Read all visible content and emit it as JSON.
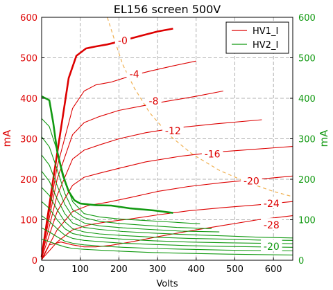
{
  "chart_data": {
    "type": "line",
    "title": "EL156 screen 500V",
    "xlabel": "Volts",
    "ylabel_left": "mA",
    "ylabel_right": "mA",
    "xlim": [
      0,
      650
    ],
    "ylim": [
      0,
      600
    ],
    "x_ticks": [
      "0",
      "100",
      "200",
      "300",
      "400",
      "500",
      "600"
    ],
    "y_ticks": [
      "0",
      "100",
      "200",
      "300",
      "400",
      "500",
      "600"
    ],
    "grid": true,
    "legend_position": "top-right",
    "colors": {
      "hv1": "#dd0000",
      "hv2": "#119911",
      "pmax": "#f0b050",
      "grid": "#999999"
    },
    "legend": [
      {
        "label": "HV1_I",
        "color": "#dd0000"
      },
      {
        "label": "HV2_I",
        "color": "#119911"
      }
    ],
    "series": [
      {
        "name": "HV1_I",
        "grid_bias": "-0",
        "bold": true,
        "x": [
          0,
          30,
          70,
          90,
          115,
          140,
          170,
          200,
          260,
          300,
          340
        ],
        "y": [
          8,
          200,
          450,
          505,
          523,
          528,
          533,
          540,
          555,
          565,
          572
        ]
      },
      {
        "name": "HV1_I",
        "grid_bias": "-4",
        "x": [
          0,
          40,
          80,
          110,
          140,
          180,
          230,
          280,
          340,
          400
        ],
        "y": [
          10,
          230,
          375,
          418,
          433,
          440,
          455,
          467,
          480,
          492
        ]
      },
      {
        "name": "HV1_I",
        "grid_bias": "-8",
        "x": [
          0,
          40,
          80,
          110,
          150,
          200,
          260,
          320,
          400,
          470
        ],
        "y": [
          10,
          200,
          310,
          340,
          355,
          370,
          381,
          392,
          405,
          418
        ]
      },
      {
        "name": "HV1_I",
        "grid_bias": "-12",
        "x": [
          0,
          40,
          80,
          110,
          150,
          200,
          270,
          350,
          450,
          570
        ],
        "y": [
          8,
          160,
          250,
          272,
          285,
          300,
          315,
          327,
          337,
          347
        ]
      },
      {
        "name": "HV1_I",
        "grid_bias": "-16",
        "x": [
          0,
          40,
          80,
          110,
          150,
          200,
          270,
          360,
          450,
          550,
          650
        ],
        "y": [
          5,
          120,
          185,
          205,
          215,
          227,
          243,
          257,
          267,
          274,
          281
        ]
      },
      {
        "name": "HV1_I",
        "grid_bias": "-20",
        "x": [
          0,
          40,
          80,
          120,
          170,
          230,
          300,
          380,
          470,
          560,
          650
        ],
        "y": [
          3,
          75,
          120,
          135,
          143,
          155,
          170,
          182,
          192,
          200,
          208
        ]
      },
      {
        "name": "HV1_I",
        "grid_bias": "-24",
        "x": [
          0,
          40,
          80,
          120,
          170,
          230,
          300,
          380,
          470,
          560,
          650
        ],
        "y": [
          2,
          45,
          75,
          87,
          95,
          102,
          112,
          122,
          130,
          137,
          145
        ]
      },
      {
        "name": "HV1_I",
        "grid_bias": "-28",
        "x": [
          0,
          20,
          50,
          80,
          110,
          140,
          180,
          230,
          300,
          380,
          470,
          560,
          650
        ],
        "y": [
          0,
          38,
          45,
          38,
          33,
          33,
          37,
          45,
          58,
          72,
          86,
          100,
          110
        ]
      },
      {
        "name": "HV2_I",
        "grid_bias": "-0",
        "bold": true,
        "x": [
          0,
          20,
          30,
          40,
          55,
          70,
          85,
          100,
          140,
          180,
          230,
          290,
          340
        ],
        "y": [
          405,
          395,
          340,
          270,
          210,
          170,
          148,
          140,
          136,
          135,
          128,
          123,
          117
        ]
      },
      {
        "name": "HV2_I",
        "x": [
          0,
          20,
          40,
          60,
          80,
          110,
          150,
          200,
          270,
          340,
          410
        ],
        "y": [
          350,
          330,
          270,
          200,
          145,
          115,
          107,
          102,
          98,
          94,
          90
        ]
      },
      {
        "name": "HV2_I",
        "x": [
          0,
          20,
          40,
          60,
          80,
          110,
          150,
          200,
          270,
          350,
          440
        ],
        "y": [
          305,
          280,
          225,
          165,
          125,
          105,
          96,
          91,
          86,
          81,
          78
        ]
      },
      {
        "name": "HV2_I",
        "x": [
          0,
          20,
          40,
          60,
          80,
          110,
          150,
          210,
          280,
          360,
          460
        ],
        "y": [
          260,
          235,
          185,
          138,
          108,
          92,
          85,
          80,
          76,
          72,
          70
        ]
      },
      {
        "name": "HV2_I",
        "x": [
          0,
          20,
          40,
          60,
          80,
          110,
          150,
          210,
          290,
          380,
          480,
          560,
          650
        ],
        "y": [
          220,
          195,
          152,
          115,
          92,
          81,
          76,
          71,
          67,
          63,
          60,
          57,
          55
        ]
      },
      {
        "name": "HV2_I",
        "x": [
          0,
          20,
          40,
          60,
          80,
          110,
          150,
          210,
          290,
          380,
          480,
          560,
          650
        ],
        "y": [
          180,
          160,
          125,
          95,
          78,
          70,
          65,
          61,
          57,
          54,
          52,
          50,
          49
        ]
      },
      {
        "name": "HV2_I",
        "x": [
          0,
          20,
          40,
          60,
          80,
          110,
          150,
          210,
          290,
          380,
          480,
          560,
          650
        ],
        "y": [
          145,
          128,
          100,
          78,
          66,
          60,
          56,
          52,
          48,
          45,
          43,
          42,
          41
        ]
      },
      {
        "name": "HV2_I",
        "x": [
          0,
          20,
          40,
          60,
          80,
          110,
          150,
          210,
          290,
          380,
          480,
          560,
          650
        ],
        "y": [
          110,
          96,
          78,
          62,
          54,
          49,
          46,
          42,
          39,
          36,
          34,
          33,
          32
        ]
      },
      {
        "name": "HV2_I",
        "x": [
          0,
          20,
          40,
          60,
          80,
          110,
          150,
          210,
          290,
          380,
          480,
          560,
          650
        ],
        "y": [
          80,
          70,
          58,
          47,
          42,
          38,
          35,
          32,
          29,
          27,
          25,
          24,
          23
        ]
      },
      {
        "name": "HV2_I",
        "x": [
          0,
          20,
          40,
          60,
          80,
          110,
          150,
          210,
          290,
          380,
          480,
          560,
          650
        ],
        "y": [
          52,
          46,
          39,
          33,
          29,
          27,
          25,
          22,
          19,
          17,
          15,
          14,
          13
        ]
      }
    ],
    "max_dissipation_curve": {
      "x": [
        170,
        190,
        210,
        240,
        280,
        330,
        390,
        460,
        530,
        600,
        650
      ],
      "y": [
        600,
        540,
        483,
        425,
        364,
        309,
        262,
        222,
        193,
        170,
        157
      ]
    },
    "annotations": [
      {
        "text": "-0",
        "x": 210,
        "y": 543,
        "color": "#dd0000"
      },
      {
        "text": "-4",
        "x": 240,
        "y": 460,
        "color": "#dd0000"
      },
      {
        "text": "-8",
        "x": 290,
        "y": 393,
        "color": "#dd0000"
      },
      {
        "text": "-12",
        "x": 340,
        "y": 320,
        "color": "#dd0000"
      },
      {
        "text": "-16",
        "x": 442,
        "y": 262,
        "color": "#dd0000"
      },
      {
        "text": "-20",
        "x": 543,
        "y": 196,
        "color": "#dd0000"
      },
      {
        "text": "-24",
        "x": 595,
        "y": 140,
        "color": "#dd0000"
      },
      {
        "text": "-28",
        "x": 595,
        "y": 87,
        "color": "#dd0000"
      },
      {
        "text": "-20",
        "x": 595,
        "y": 34,
        "color": "#119911"
      }
    ]
  }
}
